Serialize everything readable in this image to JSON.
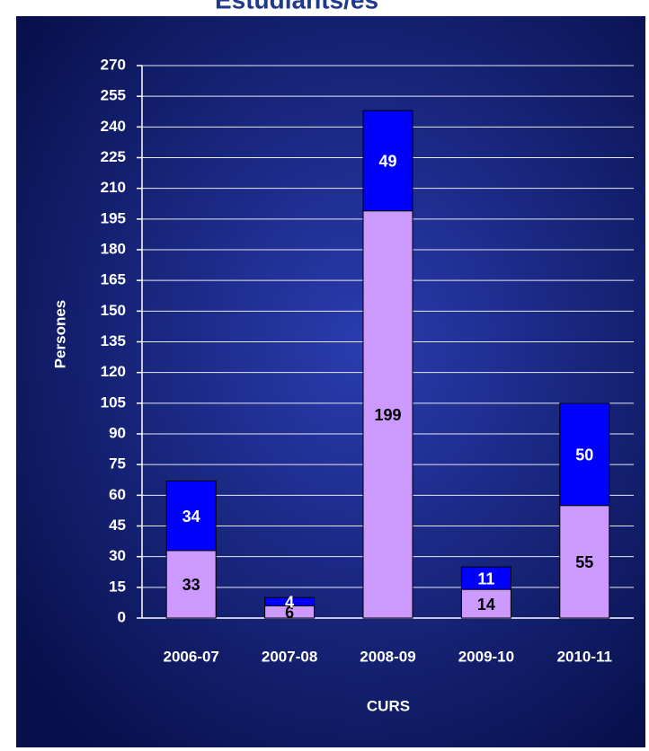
{
  "chart_data": {
    "type": "stacked_bar",
    "title": "Estudiants/es",
    "categories": [
      "2006-07",
      "2007-08",
      "2008-09",
      "2009-10",
      "2010-11"
    ],
    "series": [
      {
        "color": "#cc99ff",
        "values": [
          33,
          6,
          199,
          14,
          55
        ]
      },
      {
        "color": "#0000ff",
        "values": [
          34,
          4,
          49,
          11,
          50
        ]
      }
    ],
    "ylim": [
      0,
      270
    ],
    "yticks": [
      0,
      15,
      30,
      45,
      60,
      75,
      90,
      105,
      120,
      135,
      150,
      165,
      180,
      195,
      210,
      225,
      240,
      255,
      270
    ],
    "grid": true,
    "xlabel": "CURS",
    "ylabel": "Persones"
  }
}
